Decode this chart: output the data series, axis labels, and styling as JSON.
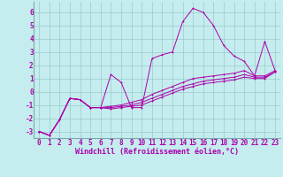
{
  "xlabel": "Windchill (Refroidissement éolien,°C)",
  "background_color": "#c5ecee",
  "line_color": "#aa00aa",
  "grid_color": "#99cccc",
  "xlim": [
    -0.5,
    23.5
  ],
  "ylim": [
    -3.5,
    6.8
  ],
  "xticks": [
    0,
    1,
    2,
    3,
    4,
    5,
    6,
    7,
    8,
    9,
    10,
    11,
    12,
    13,
    14,
    15,
    16,
    17,
    18,
    19,
    20,
    21,
    22,
    23
  ],
  "yticks": [
    -3,
    -2,
    -1,
    0,
    1,
    2,
    3,
    4,
    5,
    6
  ],
  "y_main": [
    -3.0,
    -3.3,
    -2.1,
    -0.5,
    -0.6,
    -1.2,
    -1.2,
    1.3,
    0.7,
    -1.2,
    -1.2,
    2.5,
    2.8,
    3.0,
    5.3,
    6.3,
    6.0,
    5.0,
    3.5,
    2.7,
    2.3,
    1.2,
    3.8,
    1.6
  ],
  "y_line2": [
    -3.0,
    -3.3,
    -2.1,
    -0.5,
    -0.6,
    -1.2,
    -1.2,
    -1.1,
    -1.0,
    -0.8,
    -0.6,
    -0.2,
    0.1,
    0.4,
    0.7,
    1.0,
    1.1,
    1.2,
    1.3,
    1.4,
    1.6,
    1.2,
    1.2,
    1.6
  ],
  "y_line3": [
    -3.0,
    -3.3,
    -2.1,
    -0.5,
    -0.6,
    -1.2,
    -1.2,
    -1.2,
    -1.1,
    -1.0,
    -0.8,
    -0.5,
    -0.2,
    0.1,
    0.4,
    0.6,
    0.8,
    0.9,
    1.0,
    1.1,
    1.3,
    1.1,
    1.1,
    1.5
  ],
  "y_line4": [
    -3.0,
    -3.3,
    -2.1,
    -0.5,
    -0.6,
    -1.2,
    -1.2,
    -1.3,
    -1.2,
    -1.1,
    -1.0,
    -0.7,
    -0.4,
    -0.1,
    0.2,
    0.4,
    0.6,
    0.7,
    0.8,
    0.9,
    1.1,
    1.0,
    1.0,
    1.5
  ],
  "lw": 0.7,
  "ms": 2.0,
  "xlabel_fontsize": 6.0,
  "tick_fontsize": 5.5
}
